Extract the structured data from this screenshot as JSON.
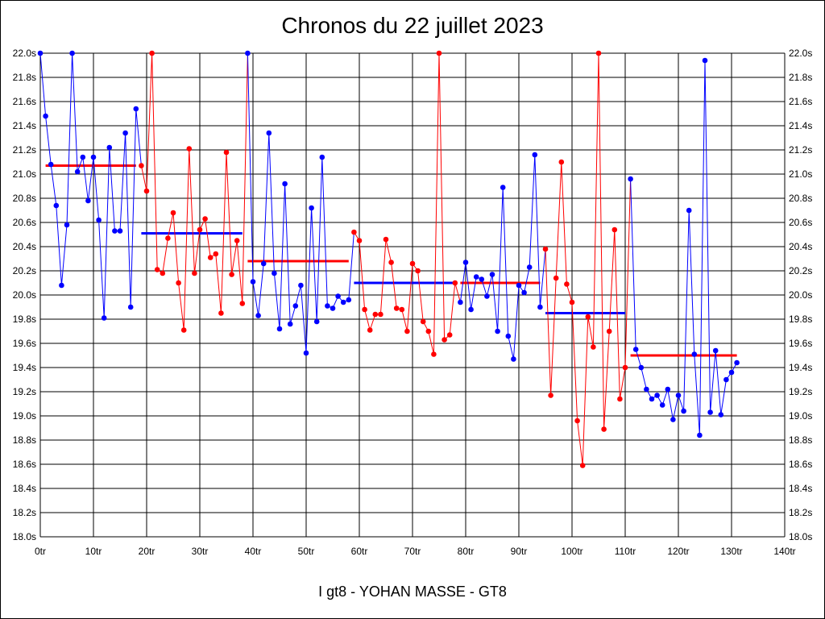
{
  "chart_data": {
    "type": "line",
    "title": "Chronos du 22 juillet 2023",
    "xlabel": "I gt8 - YOHAN MASSE - GT8",
    "ylabel": "",
    "xlim": [
      0,
      140
    ],
    "ylim": [
      18.0,
      22.0
    ],
    "grid": true,
    "x_ticks": [
      0,
      10,
      20,
      30,
      40,
      50,
      60,
      70,
      80,
      90,
      100,
      110,
      120,
      130,
      140
    ],
    "x_tick_labels": [
      "0tr",
      "10tr",
      "20tr",
      "30tr",
      "40tr",
      "50tr",
      "60tr",
      "70tr",
      "80tr",
      "90tr",
      "100tr",
      "110tr",
      "120tr",
      "130tr",
      "140tr"
    ],
    "y_ticks": [
      18.0,
      18.2,
      18.4,
      18.6,
      18.8,
      19.0,
      19.2,
      19.4,
      19.6,
      19.8,
      20.0,
      20.2,
      20.4,
      20.6,
      20.8,
      21.0,
      21.2,
      21.4,
      21.6,
      21.8,
      22.0
    ],
    "y_tick_labels": [
      "18.0s",
      "18.2s",
      "18.4s",
      "18.6s",
      "18.8s",
      "19.0s",
      "19.2s",
      "19.4s",
      "19.6s",
      "19.8s",
      "20.0s",
      "20.2s",
      "20.4s",
      "20.6s",
      "20.8s",
      "21.0s",
      "21.2s",
      "21.4s",
      "21.6s",
      "21.8s",
      "22.0s"
    ],
    "series": [
      {
        "color": "#0000ff",
        "x0": 0,
        "values": [
          22.0,
          21.48,
          21.08,
          20.74,
          20.08,
          20.58,
          22.0,
          21.02,
          21.14,
          20.78,
          21.14,
          20.62,
          19.81,
          21.22,
          20.53,
          20.53,
          21.34,
          19.9,
          21.54
        ],
        "average": 21.07
      },
      {
        "color": "#ff0000",
        "x0": 19,
        "values": [
          21.07,
          20.86,
          22.0,
          20.21,
          20.18,
          20.47,
          20.68,
          20.1,
          19.71,
          21.21,
          20.18,
          20.54,
          20.63,
          20.31,
          20.34,
          19.85,
          21.18,
          20.17,
          20.45,
          19.93
        ],
        "average": 20.51
      },
      {
        "color": "#0000ff",
        "x0": 39,
        "values": [
          22.0,
          20.11,
          19.83,
          20.26,
          21.34,
          20.18,
          19.72,
          20.92,
          19.76,
          19.91,
          20.08,
          19.52,
          20.72,
          19.78,
          21.14,
          19.91,
          19.89,
          19.99,
          19.94,
          19.96
        ],
        "average": 20.28
      },
      {
        "color": "#ff0000",
        "x0": 59,
        "values": [
          20.52,
          20.45,
          19.88,
          19.71,
          19.84,
          19.84,
          20.46,
          20.27,
          19.89,
          19.88,
          19.7,
          20.26,
          20.2,
          19.78,
          19.7,
          19.51,
          22.0,
          19.63,
          19.67,
          20.1
        ],
        "average": 20.1
      },
      {
        "color": "#0000ff",
        "x0": 79,
        "values": [
          19.94,
          20.27,
          19.88,
          20.15,
          20.13,
          19.99,
          20.17,
          19.7,
          20.89,
          19.66,
          19.47,
          20.08,
          20.02,
          20.23,
          21.16,
          19.9
        ],
        "average": 20.1
      },
      {
        "color": "#ff0000",
        "x0": 95,
        "values": [
          20.38,
          19.17,
          20.14,
          21.1,
          20.09,
          19.94,
          18.96,
          18.59,
          19.82,
          19.57,
          22.0,
          18.89,
          19.7,
          20.54,
          19.14,
          19.4
        ],
        "average": 19.85
      },
      {
        "color": "#0000ff",
        "x0": 111,
        "values": [
          20.96,
          19.55,
          19.4,
          19.22,
          19.14,
          19.17,
          19.09,
          19.22,
          18.97,
          19.17,
          19.04,
          20.7,
          19.51,
          18.84,
          21.94,
          19.03,
          19.54,
          19.01,
          19.3,
          19.36,
          19.44
        ],
        "average": 19.5
      }
    ],
    "average_lines": [
      {
        "color": "#ff0000",
        "x": [
          1,
          18
        ],
        "value": 21.07
      },
      {
        "color": "#0000ff",
        "x": [
          19,
          38
        ],
        "value": 20.51
      },
      {
        "color": "#ff0000",
        "x": [
          39,
          58
        ],
        "value": 20.28
      },
      {
        "color": "#0000ff",
        "x": [
          59,
          78
        ],
        "value": 20.1
      },
      {
        "color": "#ff0000",
        "x": [
          79,
          94
        ],
        "value": 20.1
      },
      {
        "color": "#0000ff",
        "x": [
          95,
          110
        ],
        "value": 19.85
      },
      {
        "color": "#ff0000",
        "x": [
          111,
          131
        ],
        "value": 19.5
      }
    ]
  }
}
